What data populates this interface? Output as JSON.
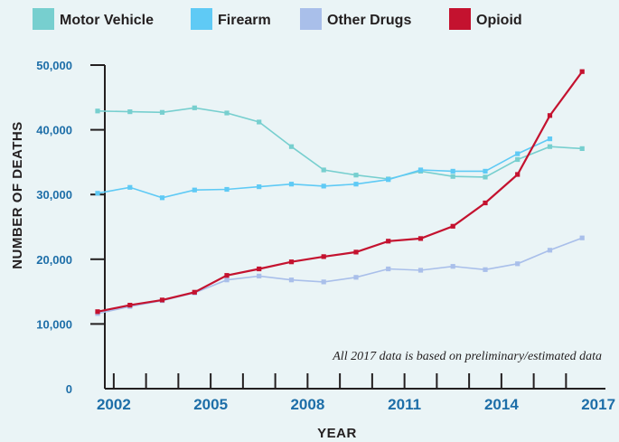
{
  "chart_data": {
    "type": "line",
    "title": "",
    "xlabel": "YEAR",
    "ylabel": "NUMBER OF DEATHS",
    "x_tick_labels": [
      "2002",
      "2005",
      "2008",
      "2011",
      "2014",
      "2017"
    ],
    "y_tick_labels": [
      "0",
      "10,000",
      "20,000",
      "30,000",
      "40,000",
      "50,000"
    ],
    "ylim": [
      0,
      50000
    ],
    "xlim": [
      2001.5,
      2017.5
    ],
    "grid": false,
    "legend_position": "top",
    "annotation": "All 2017 data is based on preliminary/estimated data",
    "x": [
      2001.5,
      2002.5,
      2003.5,
      2004.5,
      2005.5,
      2006.5,
      2007.5,
      2008.5,
      2009.5,
      2010.5,
      2011.5,
      2012.5,
      2013.5,
      2014.5,
      2015.5,
      2016.5
    ],
    "series": [
      {
        "name": "Motor Vehicle",
        "color": "#77cfcf",
        "values": [
          42900,
          42800,
          42700,
          43400,
          42600,
          41200,
          37400,
          33800,
          33000,
          32400,
          33600,
          32800,
          32700,
          35400,
          37400,
          37100
        ]
      },
      {
        "name": "Firearm",
        "color": "#5fcaf5",
        "values": [
          30200,
          31100,
          29500,
          30700,
          30800,
          31200,
          31600,
          31300,
          31600,
          32300,
          33800,
          33600,
          33600,
          36300,
          38600,
          null
        ]
      },
      {
        "name": "Other Drugs",
        "color": "#a9bfea",
        "values": [
          11600,
          12700,
          13600,
          14800,
          16800,
          17400,
          16800,
          16500,
          17200,
          18500,
          18300,
          18900,
          18400,
          19300,
          21400,
          23300
        ]
      },
      {
        "name": "Opioid",
        "color": "#c4122f",
        "values": [
          11900,
          12900,
          13700,
          14900,
          17500,
          18500,
          19600,
          20400,
          21100,
          22800,
          23200,
          25100,
          28700,
          33100,
          42200,
          49000
        ]
      }
    ]
  }
}
